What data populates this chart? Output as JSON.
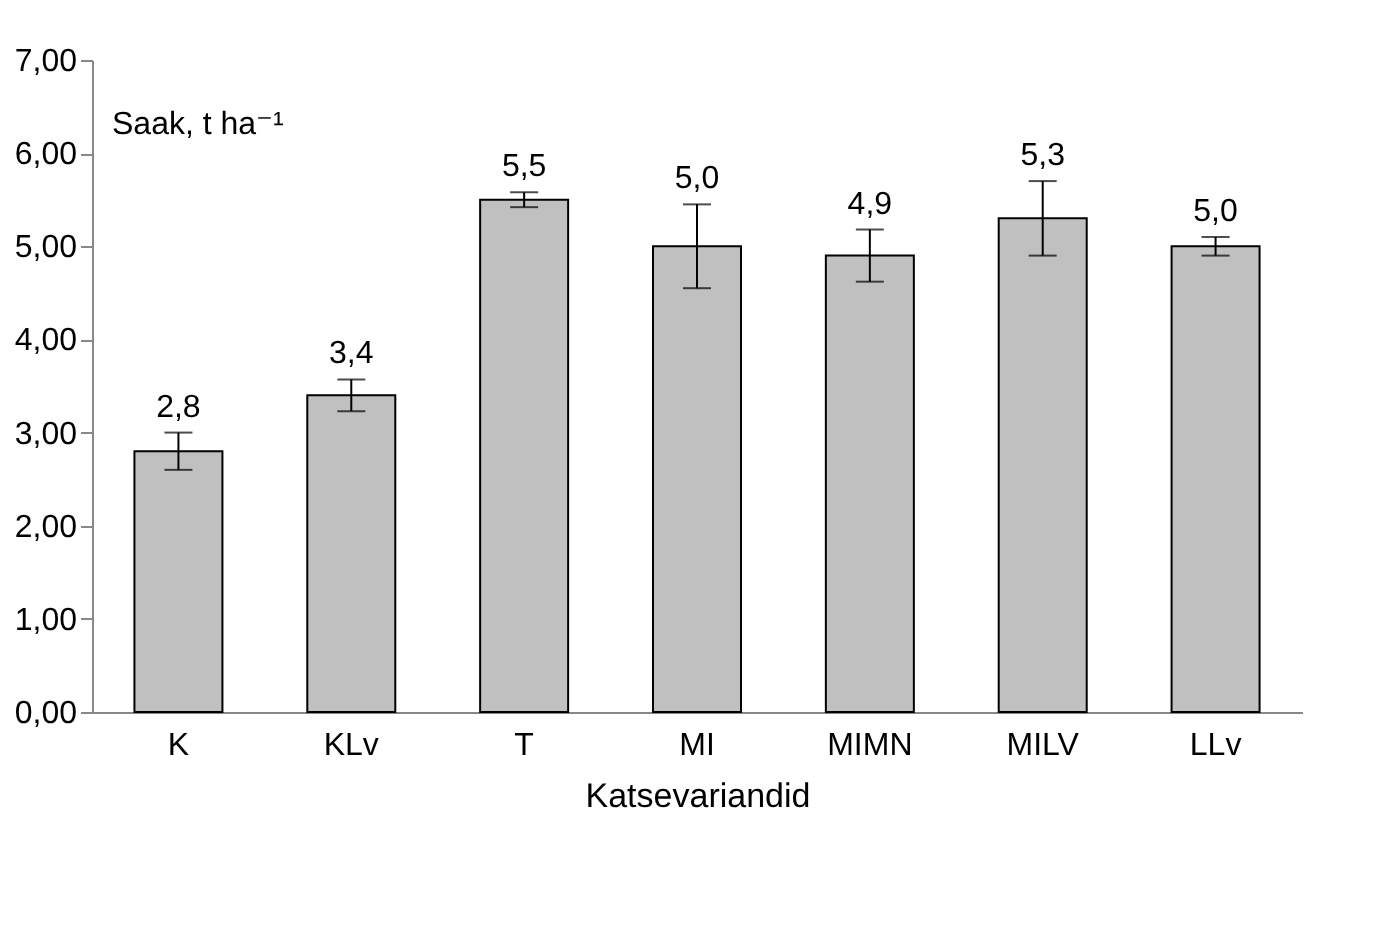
{
  "chart_data": {
    "type": "bar",
    "ylabel": "Saak, t ha⁻¹",
    "xlabel": "Katsevariandid",
    "categories": [
      "K",
      "KLv",
      "T",
      "MI",
      "MIMN",
      "MILV",
      "LLv"
    ],
    "values": [
      2.8,
      3.4,
      5.5,
      5.0,
      4.9,
      5.3,
      5.0
    ],
    "errors": [
      0.2,
      0.17,
      0.08,
      0.45,
      0.28,
      0.4,
      0.1
    ],
    "value_labels": [
      "2,8",
      "3,4",
      "5,5",
      "5,0",
      "4,9",
      "5,3",
      "5,0"
    ],
    "color": "#c0c0c0",
    "ylim": [
      0,
      7
    ],
    "yticks": [
      {
        "value": 0,
        "label": "0,00"
      },
      {
        "value": 1,
        "label": "1,00"
      },
      {
        "value": 2,
        "label": "2,00"
      },
      {
        "value": 3,
        "label": "3,00"
      },
      {
        "value": 4,
        "label": "4,00"
      },
      {
        "value": 5,
        "label": "5,00"
      },
      {
        "value": 6,
        "label": "6,00"
      },
      {
        "value": 7,
        "label": "7,00"
      }
    ],
    "grid": false
  }
}
